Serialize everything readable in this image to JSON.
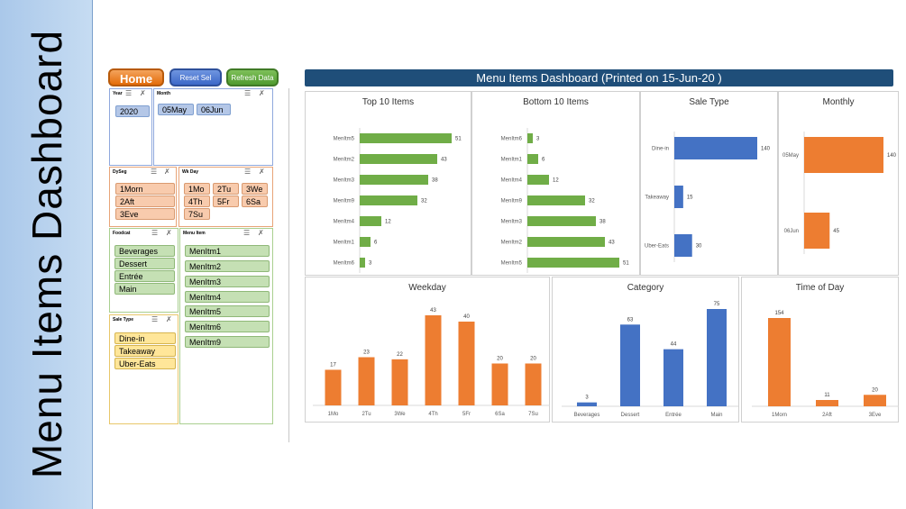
{
  "side_title": "Menu Items Dashboard",
  "buttons": {
    "home": "Home",
    "reset": "Reset Sel",
    "refresh": "Refresh Data"
  },
  "dashboard_title": "Menu Items Dashboard (Printed on 15-Jun-20 )",
  "slicers": {
    "year": {
      "title": "Year",
      "items": [
        "2020"
      ]
    },
    "month": {
      "title": "Month",
      "items": [
        "05May",
        "06Jun"
      ]
    },
    "dyseg": {
      "title": "DySeg",
      "items": [
        "1Morn",
        "2Aft",
        "3Eve"
      ]
    },
    "wkday": {
      "title": "Wk Day",
      "items": [
        "1Mo",
        "2Tu",
        "3We",
        "4Th",
        "5Fr",
        "6Sa",
        "7Su"
      ]
    },
    "foodcat": {
      "title": "Foodcat",
      "items": [
        "Beverages",
        "Dessert",
        "Entrée",
        "Main"
      ]
    },
    "menuitem": {
      "title": "Menu Item",
      "items": [
        "MenItm1",
        "MenItm2",
        "MenItm3",
        "MenItm4",
        "MenItm5",
        "MenItm6",
        "MenItm9"
      ]
    },
    "saletype": {
      "title": "Sale Type",
      "items": [
        "Dine-in",
        "Takeaway",
        "Uber-Eats"
      ]
    }
  },
  "colors": {
    "green": "#70ad47",
    "blue": "#4472c4",
    "orange": "#ed7d31",
    "navy": "#1f4e79"
  },
  "chart_data": [
    {
      "id": "top10",
      "type": "bar",
      "orientation": "horizontal",
      "title": "Top 10 Items",
      "categories": [
        "MenItm5",
        "MenItm2",
        "MenItm3",
        "MenItm9",
        "MenItm4",
        "MenItm1",
        "MenItm6"
      ],
      "values": [
        51,
        43,
        38,
        32,
        12,
        6,
        3
      ]
    },
    {
      "id": "bottom10",
      "type": "bar",
      "orientation": "horizontal",
      "title": "Bottom 10 Items",
      "categories": [
        "MenItm6",
        "MenItm1",
        "MenItm4",
        "MenItm9",
        "MenItm3",
        "MenItm2",
        "MenItm5"
      ],
      "values": [
        3,
        6,
        12,
        32,
        38,
        43,
        51
      ]
    },
    {
      "id": "saletype",
      "type": "bar",
      "orientation": "horizontal",
      "title": "Sale Type",
      "categories": [
        "Dine-in",
        "Takeaway",
        "Uber-Eats"
      ],
      "values": [
        140,
        15,
        30
      ]
    },
    {
      "id": "monthly",
      "type": "bar",
      "orientation": "horizontal",
      "title": "Monthly",
      "categories": [
        "05May",
        "06Jun"
      ],
      "values": [
        140,
        45
      ]
    },
    {
      "id": "weekday",
      "type": "bar",
      "orientation": "vertical",
      "title": "Weekday",
      "categories": [
        "1Mo",
        "2Tu",
        "3We",
        "4Th",
        "5Fr",
        "6Sa",
        "7Su"
      ],
      "values": [
        17,
        23,
        22,
        43,
        40,
        20,
        20
      ]
    },
    {
      "id": "category",
      "type": "bar",
      "orientation": "vertical",
      "title": "Category",
      "categories": [
        "Beverages",
        "Dessert",
        "Entrée",
        "Main"
      ],
      "values": [
        3,
        63,
        44,
        75
      ]
    },
    {
      "id": "timeofday",
      "type": "bar",
      "orientation": "vertical",
      "title": "Time of Day",
      "categories": [
        "1Morn",
        "2Aft",
        "3Eve"
      ],
      "values": [
        154,
        11,
        20
      ]
    }
  ]
}
